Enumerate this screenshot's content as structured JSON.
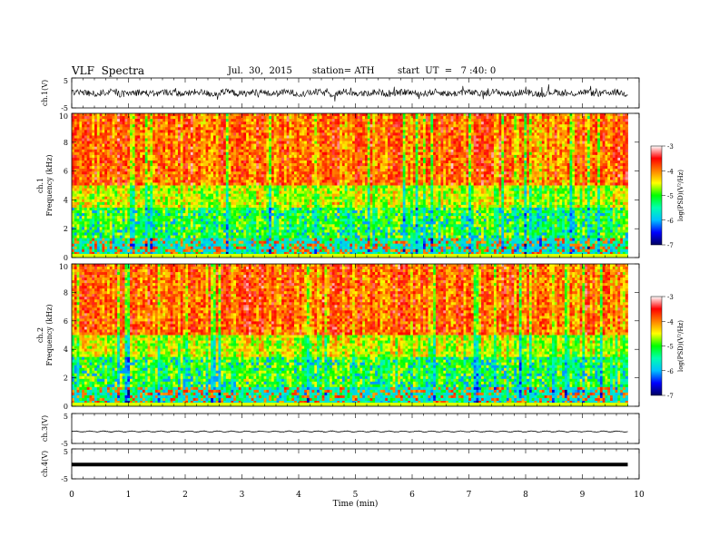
{
  "header": {
    "title": "VLF  Spectra",
    "date": "Jul.  30,  2015",
    "station": "station= ATH",
    "start": "start  UT  =   7 :40: 0"
  },
  "chart_data": {
    "type": "heatmap",
    "title": "VLF  Spectra",
    "xlabel": "Time  (min)",
    "xlim": [
      0,
      10
    ],
    "x_ticks": [
      "0",
      "1",
      "2",
      "3",
      "4",
      "5",
      "6",
      "7",
      "8",
      "9",
      "10"
    ],
    "panels": [
      {
        "id": "ch1_wave",
        "kind": "waveform",
        "ylabel": "ch.1(V)",
        "ylim": [
          -5,
          5
        ],
        "y_ticks": [
          "5",
          "-5"
        ],
        "trace": "dense noise, amplitude approx. ±1.5 V",
        "color": "#000000"
      },
      {
        "id": "ch1_spec",
        "kind": "spectrogram",
        "ylabel": "Frequency  (kHz)",
        "channel_label": "ch.1",
        "ylim": [
          0,
          10
        ],
        "y_ticks": [
          "0",
          "2",
          "4",
          "6",
          "8",
          "10"
        ]
      },
      {
        "id": "ch2_spec",
        "kind": "spectrogram",
        "ylabel": "Frequency  (kHz)",
        "channel_label": "ch.2",
        "ylim": [
          0,
          10
        ],
        "y_ticks": [
          "0",
          "2",
          "4",
          "6",
          "8",
          "10"
        ]
      },
      {
        "id": "ch3_wave",
        "kind": "waveform",
        "ylabel": "ch.3(V)",
        "ylim": [
          -5,
          5
        ],
        "y_ticks": [
          "5",
          "-5"
        ],
        "trace": "low-amplitude line near -1 V",
        "color": "#000000"
      },
      {
        "id": "ch4_wave",
        "kind": "waveform",
        "ylabel": "ch.4(V)",
        "ylim": [
          -5,
          5
        ],
        "y_ticks": [
          "5",
          "-5"
        ],
        "trace": "thick flat line near 0 V",
        "color": "#000000"
      }
    ],
    "colorbar": {
      "label": "log(PSD)(V²/Hz)",
      "range": [
        -7,
        -3
      ],
      "ticks": [
        "-3",
        "-4",
        "-5",
        "-6",
        "-7"
      ],
      "colors": [
        "#000060",
        "#0000ff",
        "#00c0ff",
        "#00ffb0",
        "#00ff00",
        "#ffff00",
        "#ff8000",
        "#ff0000",
        "#ffffff"
      ]
    },
    "data_extent_min": 9.8,
    "spectrogram_layers": [
      {
        "band_khz": [
          0,
          1.3
        ],
        "log_psd": -5.5,
        "note": "mixed bands with red/yellow lines"
      },
      {
        "band_khz": [
          1.3,
          3.5
        ],
        "log_psd": -5.0,
        "note": "green/cyan with blue patches"
      },
      {
        "band_khz": [
          3.5,
          5.0
        ],
        "log_psd": -4.6,
        "note": "green/yellow transition"
      },
      {
        "band_khz": [
          5.0,
          10.0
        ],
        "log_psd": -3.9,
        "note": "mostly red with yellow columns"
      }
    ]
  }
}
